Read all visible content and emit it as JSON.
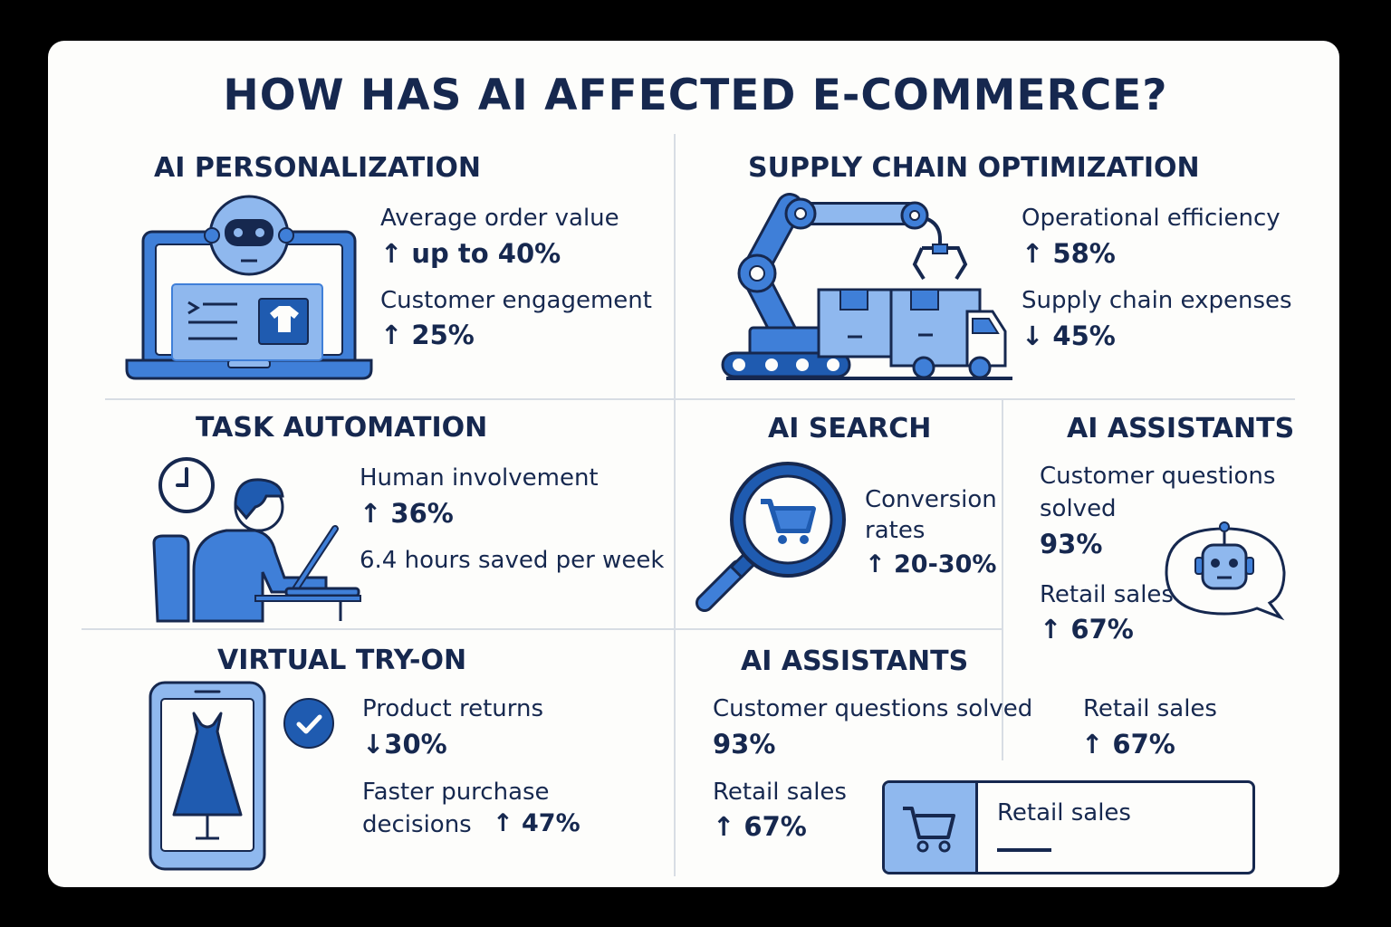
{
  "title": "HOW HAS AI AFFECTED E-COMMERCE?",
  "sections": {
    "personalization": {
      "heading": "AI PERSONALIZATION",
      "label1": "Average order value",
      "stat1": "↑ up to 40%",
      "label2": "Customer engagement",
      "stat2": "↑ 25%"
    },
    "supply_chain": {
      "heading": "SUPPLY CHAIN OPTIMIZATION",
      "label1": "Operational efficiency",
      "stat1": "↑ 58%",
      "label2": "Supply chain expenses",
      "stat2": "↓ 45%"
    },
    "task_automation": {
      "heading": "TASK AUTOMATION",
      "label1": "Human involvement",
      "stat1": "↑ 36%",
      "label2": "6.4 hours saved per week"
    },
    "ai_search": {
      "heading": "AI SEARCH",
      "label_line1": "Conversion",
      "label_line2": "rates",
      "stat1": "↑ 20-30%"
    },
    "ai_assistants_right": {
      "heading": "AI ASSISTANTS",
      "label_line1": "Customer questions",
      "label_line2": "solved",
      "stat1": "93%",
      "label2": "Retail sales",
      "stat2": "↑ 67%"
    },
    "virtual_try_on": {
      "heading": "VIRTUAL TRY-ON",
      "label1": "Product returns",
      "stat1": "↓30%",
      "label2_line1": "Faster purchase",
      "label2_line2": "decisions",
      "stat2": "↑ 47%"
    },
    "ai_assistants_bottom": {
      "heading": "AI ASSISTANTS",
      "label1": "Customer questions solved",
      "stat1": "93%",
      "label2": "Retail sales",
      "stat2": "↑ 67%",
      "label3": "Retail sales",
      "stat3": "↑ 67%",
      "card_label": "Retail sales"
    }
  },
  "colors": {
    "navy": "#16284f",
    "blue": "#3f7fd8",
    "light_blue": "#8fb8ee",
    "dark_blue": "#1f5bb0",
    "background": "#fdfdfb"
  }
}
